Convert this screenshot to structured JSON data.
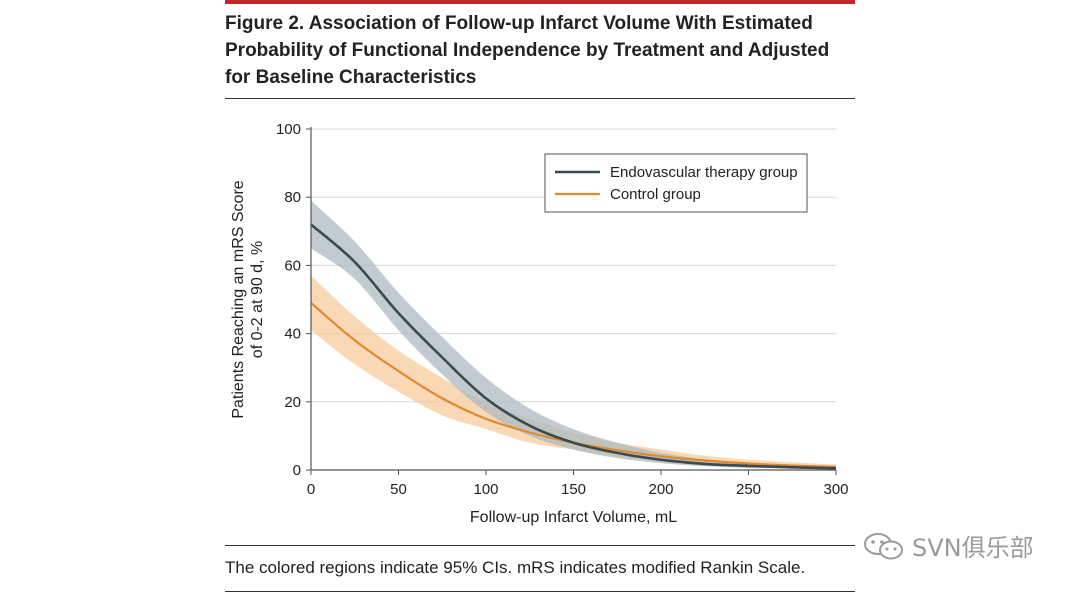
{
  "figure": {
    "title_lines": [
      "Figure 2. Association of Follow-up Infarct Volume With Estimated",
      "Probability of Functional Independence by Treatment and Adjusted",
      "for Baseline Characteristics"
    ],
    "caption": "The colored regions indicate 95% CIs. mRS indicates modified Rankin Scale.",
    "accent_color": "#c1272d"
  },
  "watermark": {
    "text": "SVN俱乐部"
  },
  "chart_data": {
    "type": "line",
    "xlabel": "Follow-up Infarct Volume, mL",
    "ylabel_lines": [
      "Patients Reaching an mRS Score",
      "of 0-2 at 90 d, %"
    ],
    "xlim": [
      0,
      300
    ],
    "ylim": [
      0,
      100
    ],
    "xticks": [
      0,
      50,
      100,
      150,
      200,
      250,
      300
    ],
    "yticks": [
      0,
      20,
      40,
      60,
      80,
      100
    ],
    "grid": "horizontal",
    "legend_position": "top-right",
    "x": [
      0,
      25,
      50,
      75,
      100,
      125,
      150,
      175,
      200,
      225,
      250,
      275,
      300
    ],
    "series": [
      {
        "name": "Endovascular therapy group",
        "color": "#3b4a4f",
        "band_color": "#aebbc0",
        "values": [
          72,
          61,
          46,
          33,
          21,
          13,
          8,
          5,
          3,
          1.8,
          1.2,
          0.8,
          0.5
        ],
        "lower": [
          65,
          56,
          41,
          28,
          17,
          10,
          6,
          3.5,
          2,
          1.1,
          0.6,
          0.4,
          0.2
        ],
        "upper": [
          79,
          67,
          52,
          39,
          27,
          18,
          12,
          8,
          5,
          3.2,
          2.2,
          1.6,
          1.2
        ]
      },
      {
        "name": "Control group",
        "color": "#e08a2c",
        "band_color": "#f6cb9c",
        "values": [
          49,
          38,
          29,
          21,
          15,
          11,
          8,
          5.8,
          4,
          2.8,
          1.9,
          1.3,
          0.9
        ],
        "lower": [
          41,
          31,
          23,
          16,
          12,
          8,
          6,
          4,
          2.8,
          1.9,
          1.2,
          0.8,
          0.5
        ],
        "upper": [
          57,
          45,
          35,
          27,
          20,
          15,
          11,
          8,
          6,
          4.2,
          3,
          2.2,
          1.6
        ]
      }
    ]
  }
}
